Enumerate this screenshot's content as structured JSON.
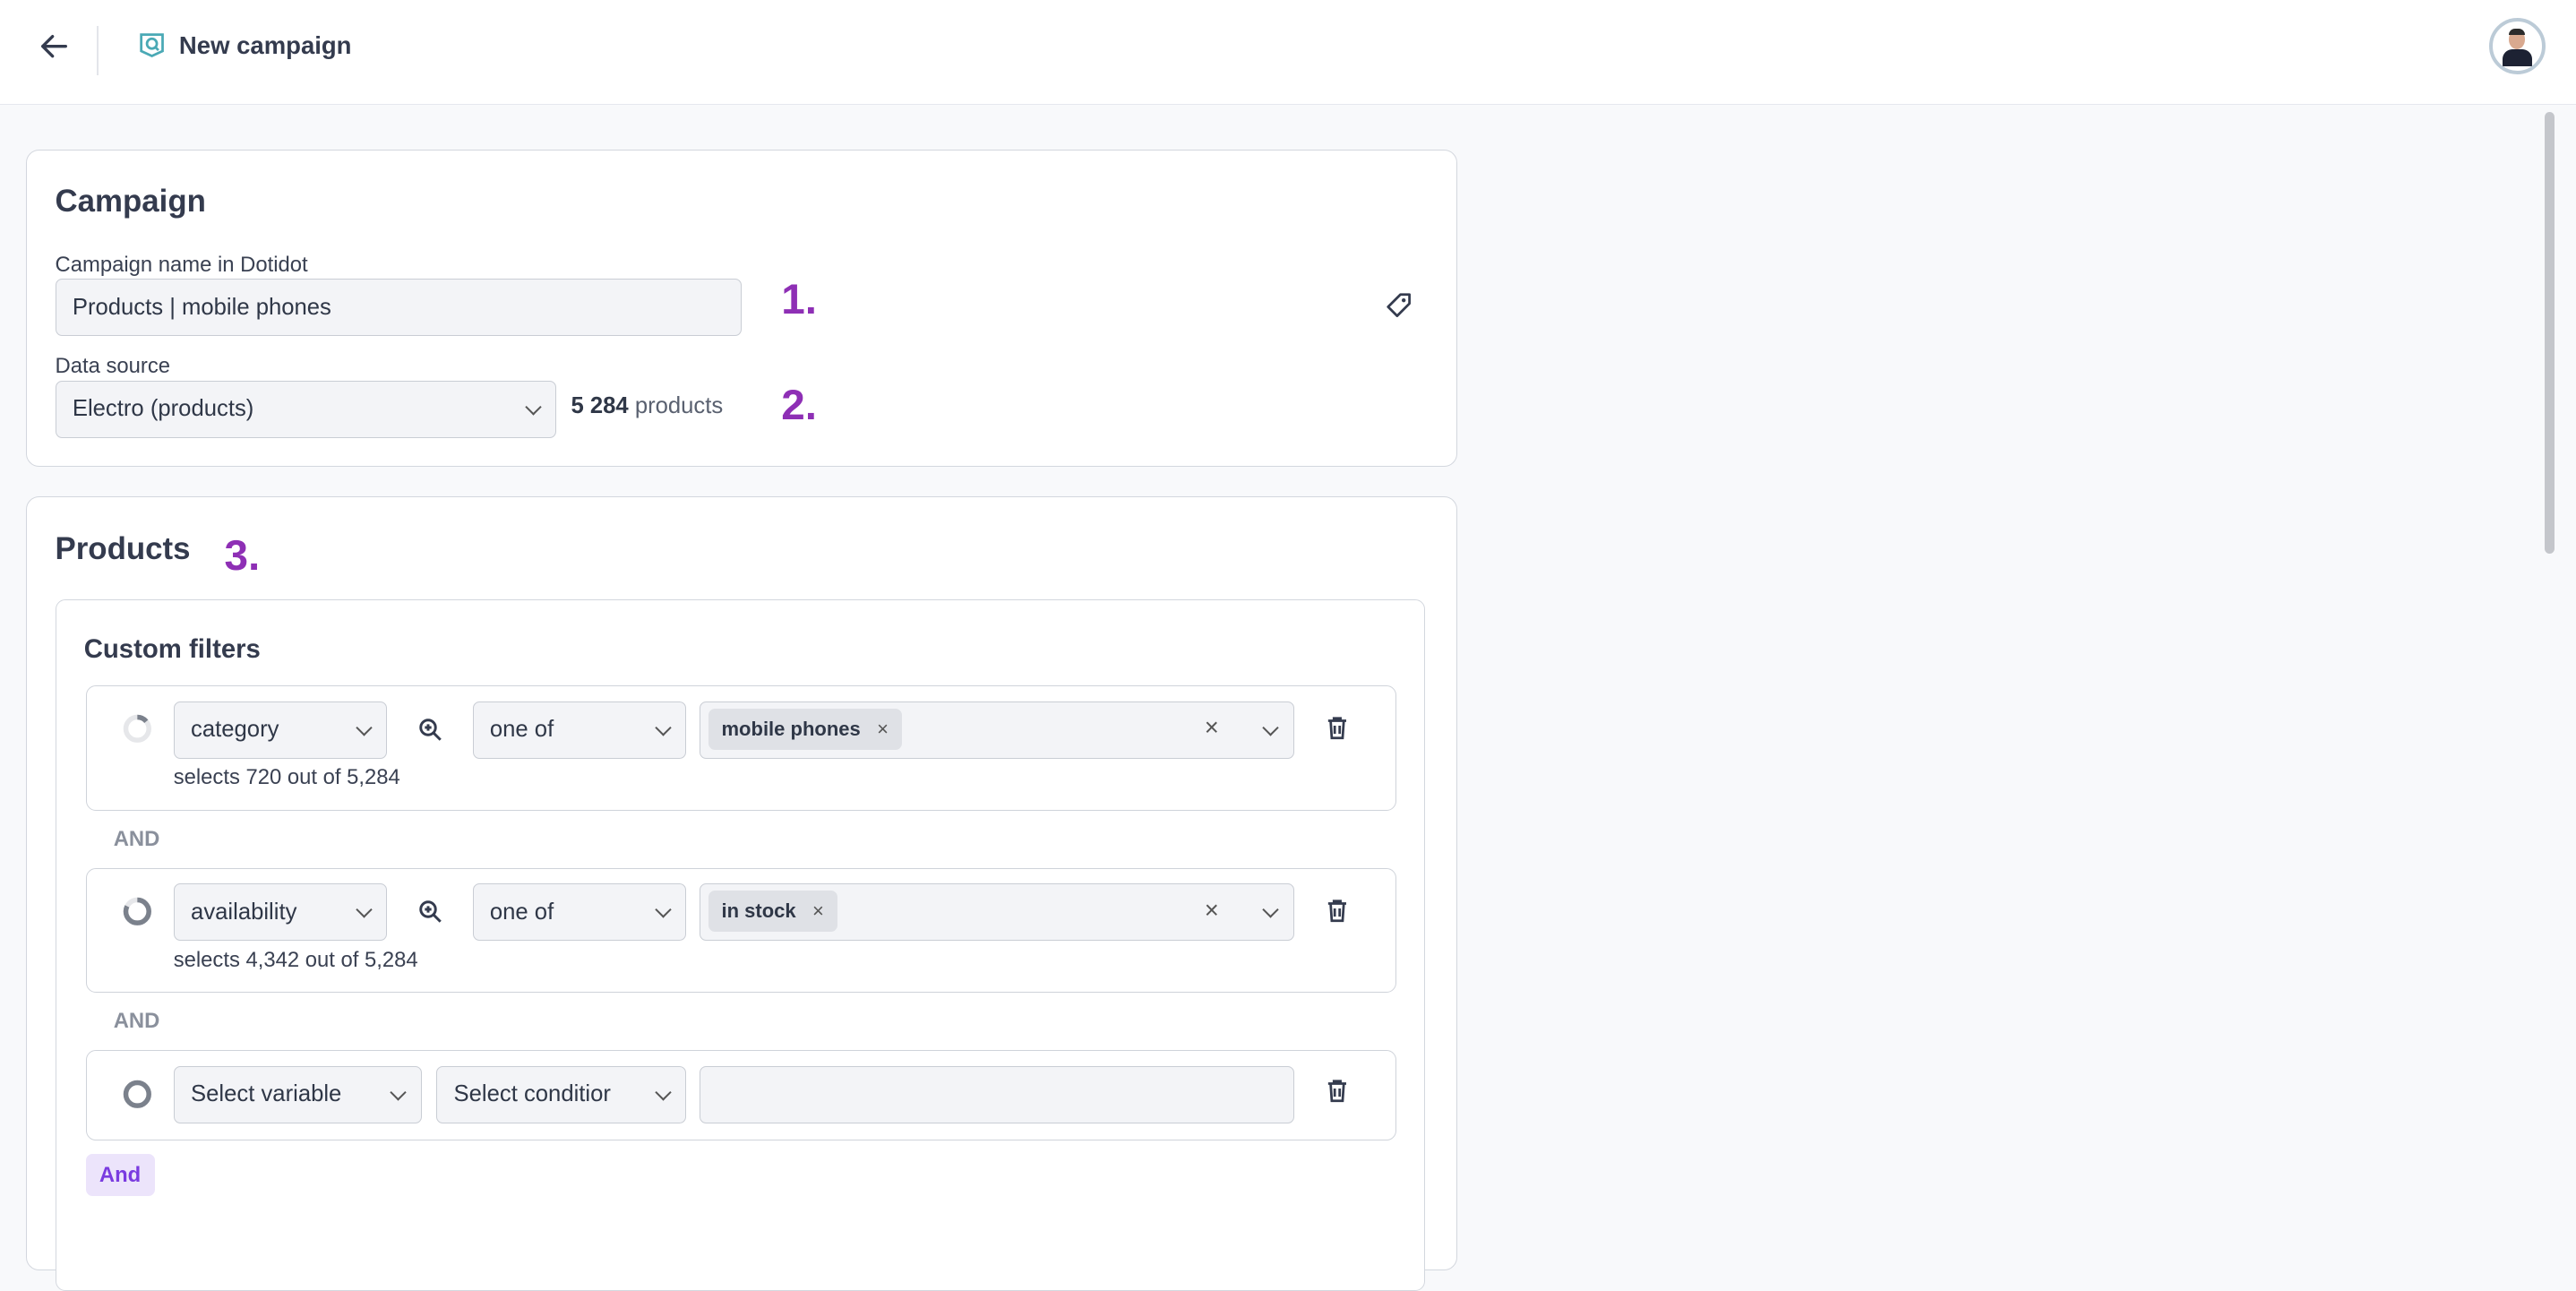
{
  "header": {
    "title": "New campaign",
    "back_icon": "arrow-left-icon",
    "logo_icon": "campaign-logo-icon"
  },
  "campaign": {
    "heading": "Campaign",
    "name_label": "Campaign name in Dotidot",
    "name_value": "Products | mobile phones",
    "source_label": "Data source",
    "source_value": "Electro (products)",
    "product_count": "5 284",
    "product_suffix": "products",
    "marker1": "1.",
    "marker2": "2."
  },
  "products": {
    "heading": "Products",
    "marker3": "3.",
    "filters_heading": "Custom filters",
    "filters": [
      {
        "variable": "category",
        "condition": "one of",
        "values": [
          "mobile phones"
        ],
        "summary": "selects 720 out of 5,284",
        "progress": 0.14
      },
      {
        "variable": "availability",
        "condition": "one of",
        "values": [
          "in stock"
        ],
        "summary": "selects 4,342 out of 5,284",
        "progress": 0.82
      },
      {
        "variable": "Select variable",
        "condition": "Select conditior",
        "values": [],
        "summary": "",
        "progress": 0
      }
    ],
    "joiner": "AND",
    "and_button": "And"
  },
  "colors": {
    "accent": "#8e2fb5",
    "logo": "#4aa9b5",
    "text": "#343b4e"
  }
}
